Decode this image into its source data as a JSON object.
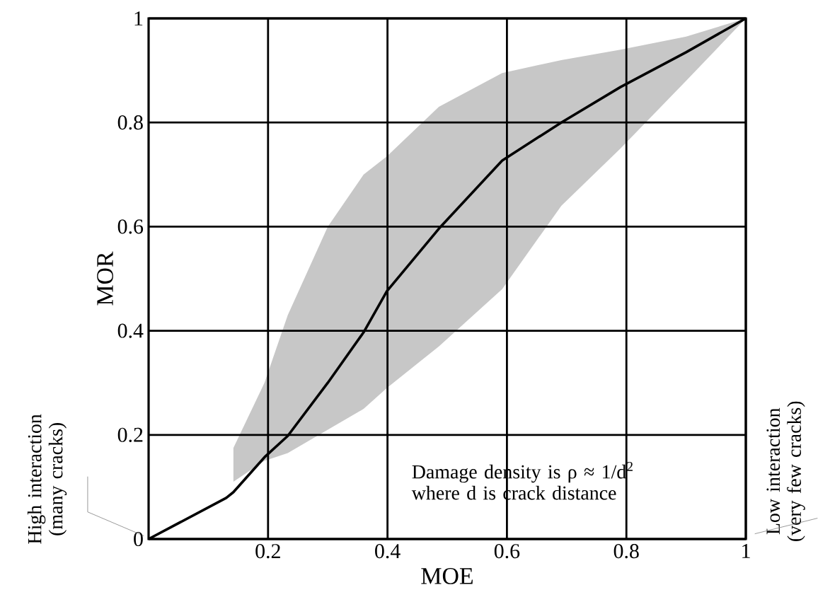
{
  "chart_data": {
    "type": "line",
    "xlabel": "MOE",
    "ylabel": "MOR",
    "xlim": [
      0,
      1
    ],
    "ylim": [
      0,
      1
    ],
    "xticks": [
      0.2,
      0.4,
      0.6,
      0.8,
      1
    ],
    "yticks": [
      0,
      0.2,
      0.4,
      0.6,
      0.8,
      1
    ],
    "grid": true,
    "marker": "none",
    "series": [
      {
        "color": "#000000",
        "x": [
          0,
          0.13,
          0.142,
          0.194,
          0.233,
          0.3,
          0.36,
          0.399,
          0.486,
          0.592,
          0.691,
          0.79,
          0.9,
          1
        ],
        "values": [
          0,
          0.079,
          0.09,
          0.157,
          0.198,
          0.3,
          0.397,
          0.476,
          0.596,
          0.727,
          0.8,
          0.868,
          0.935,
          1
        ],
        "upper": [
          null,
          null,
          0.175,
          0.3,
          0.43,
          0.6,
          0.7,
          0.735,
          0.83,
          0.895,
          0.92,
          0.94,
          0.965,
          1
        ],
        "lower": [
          null,
          null,
          0.11,
          0.15,
          0.165,
          0.21,
          0.25,
          0.29,
          0.37,
          0.48,
          0.64,
          0.75,
          0.88,
          1
        ]
      }
    ],
    "annotations": [
      "Damage density is ρ ≈ 1/d$^{2}$ where d is crack distance",
      "High interaction (many cracks)",
      "Low interaction (very few cracks)"
    ]
  }
}
